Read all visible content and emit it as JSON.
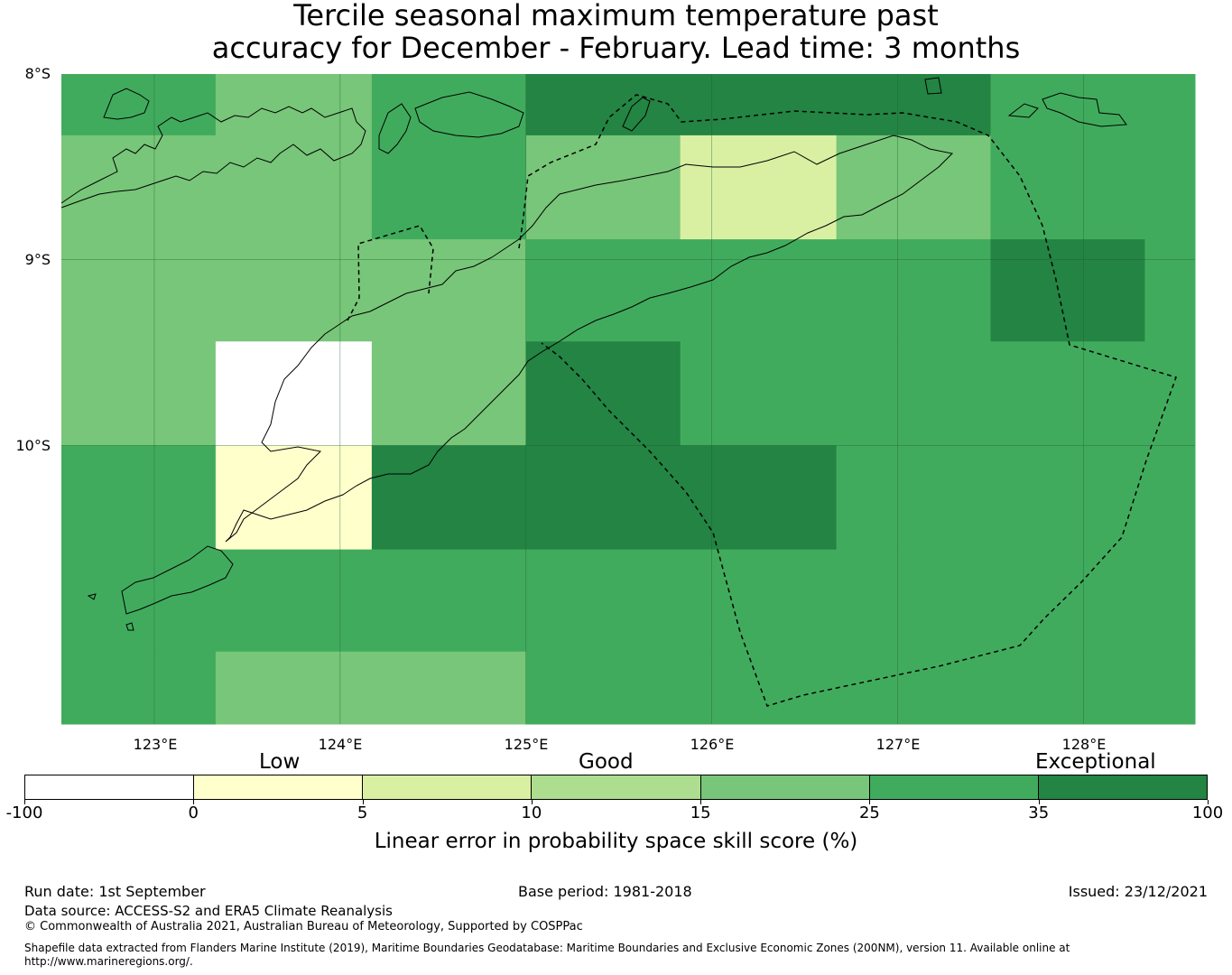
{
  "title_line1": "Tercile seasonal maximum temperature past",
  "title_line2": "accuracy for December - February. Lead time: 3 months",
  "map": {
    "lat_labels": [
      "8°S",
      "9°S",
      "10°S"
    ],
    "lon_labels": [
      "123°E",
      "124°E",
      "125°E",
      "126°E",
      "127°E",
      "128°E"
    ],
    "lon_range": [
      122.5,
      128.6
    ],
    "lat_range": [
      -8.0,
      -11.5
    ],
    "cell_size_deg": 0.833,
    "cells": [
      {
        "lon": [
          122.5,
          123.33
        ],
        "lat": [
          -8.0,
          -8.33
        ],
        "cls": 6
      },
      {
        "lon": [
          123.33,
          124.17
        ],
        "lat": [
          -8.0,
          -8.33
        ],
        "cls": 5
      },
      {
        "lon": [
          124.17,
          125.0
        ],
        "lat": [
          -8.0,
          -8.33
        ],
        "cls": 6
      },
      {
        "lon": [
          125.0,
          127.5
        ],
        "lat": [
          -8.0,
          -8.33
        ],
        "cls": 7
      },
      {
        "lon": [
          127.5,
          128.6
        ],
        "lat": [
          -8.0,
          -8.33
        ],
        "cls": 6
      },
      {
        "lon": [
          122.5,
          124.17
        ],
        "lat": [
          -8.33,
          -8.89
        ],
        "cls": 5
      },
      {
        "lon": [
          124.17,
          125.0
        ],
        "lat": [
          -8.33,
          -8.89
        ],
        "cls": 6
      },
      {
        "lon": [
          125.0,
          125.83
        ],
        "lat": [
          -8.33,
          -8.89
        ],
        "cls": 5
      },
      {
        "lon": [
          125.83,
          126.67
        ],
        "lat": [
          -8.33,
          -8.89
        ],
        "cls": 3
      },
      {
        "lon": [
          126.67,
          127.5
        ],
        "lat": [
          -8.33,
          -8.89
        ],
        "cls": 5
      },
      {
        "lon": [
          127.5,
          128.6
        ],
        "lat": [
          -8.33,
          -8.89
        ],
        "cls": 6
      },
      {
        "lon": [
          122.5,
          125.0
        ],
        "lat": [
          -8.89,
          -9.44
        ],
        "cls": 5
      },
      {
        "lon": [
          125.0,
          127.5
        ],
        "lat": [
          -8.89,
          -9.44
        ],
        "cls": 6
      },
      {
        "lon": [
          127.5,
          128.33
        ],
        "lat": [
          -8.89,
          -9.44
        ],
        "cls": 7
      },
      {
        "lon": [
          128.33,
          128.6
        ],
        "lat": [
          -8.89,
          -9.44
        ],
        "cls": 6
      },
      {
        "lon": [
          122.5,
          123.33
        ],
        "lat": [
          -9.44,
          -10.0
        ],
        "cls": 5
      },
      {
        "lon": [
          123.33,
          124.17
        ],
        "lat": [
          -9.44,
          -10.0
        ],
        "cls": 1
      },
      {
        "lon": [
          124.17,
          125.0
        ],
        "lat": [
          -9.44,
          -10.0
        ],
        "cls": 5
      },
      {
        "lon": [
          125.0,
          125.83
        ],
        "lat": [
          -9.44,
          -10.0
        ],
        "cls": 7
      },
      {
        "lon": [
          125.83,
          128.6
        ],
        "lat": [
          -9.44,
          -10.0
        ],
        "cls": 6
      },
      {
        "lon": [
          122.5,
          123.33
        ],
        "lat": [
          -10.0,
          -10.56
        ],
        "cls": 6
      },
      {
        "lon": [
          123.33,
          124.17
        ],
        "lat": [
          -10.0,
          -10.56
        ],
        "cls": 2
      },
      {
        "lon": [
          124.17,
          126.67
        ],
        "lat": [
          -10.0,
          -10.56
        ],
        "cls": 7
      },
      {
        "lon": [
          126.67,
          128.6
        ],
        "lat": [
          -10.0,
          -10.56
        ],
        "cls": 6
      },
      {
        "lon": [
          122.5,
          128.6
        ],
        "lat": [
          -10.56,
          -11.11
        ],
        "cls": 6
      },
      {
        "lon": [
          122.5,
          123.33
        ],
        "lat": [
          -11.11,
          -11.5
        ],
        "cls": 6
      },
      {
        "lon": [
          123.33,
          125.0
        ],
        "lat": [
          -11.11,
          -11.5
        ],
        "cls": 5
      },
      {
        "lon": [
          125.0,
          128.6
        ],
        "lat": [
          -11.11,
          -11.5
        ],
        "cls": 6
      }
    ]
  },
  "legend": {
    "categories": [
      "Low",
      "Good",
      "Exceptional"
    ],
    "ticks": [
      "-100",
      "0",
      "5",
      "10",
      "15",
      "25",
      "35",
      "100"
    ],
    "colors": [
      "#ffffff",
      "#ffffcc",
      "#d9f0a3",
      "#addd8e",
      "#78c679",
      "#41ab5d",
      "#238443"
    ],
    "label": "Linear error in probability space skill score (%)"
  },
  "footer": {
    "run_date": "Run date: 1st September",
    "base_period": "Base period: 1981-2018",
    "issued": "Issued: 23/12/2021",
    "data_source": "Data source: ACCESS-S2 and ERA5 Climate Reanalysis",
    "copyright": "© Commonwealth of Australia 2021, Australian Bureau of Meteorology, Supported by COSPPac",
    "shapefile_1": "Shapefile data extracted from Flanders Marine Institute (2019), Maritime Boundaries Geodatabase: Maritime Boundaries and Exclusive Economic Zones (200NM), version 11. Available online at",
    "shapefile_2": "http://www.marineregions.org/."
  }
}
